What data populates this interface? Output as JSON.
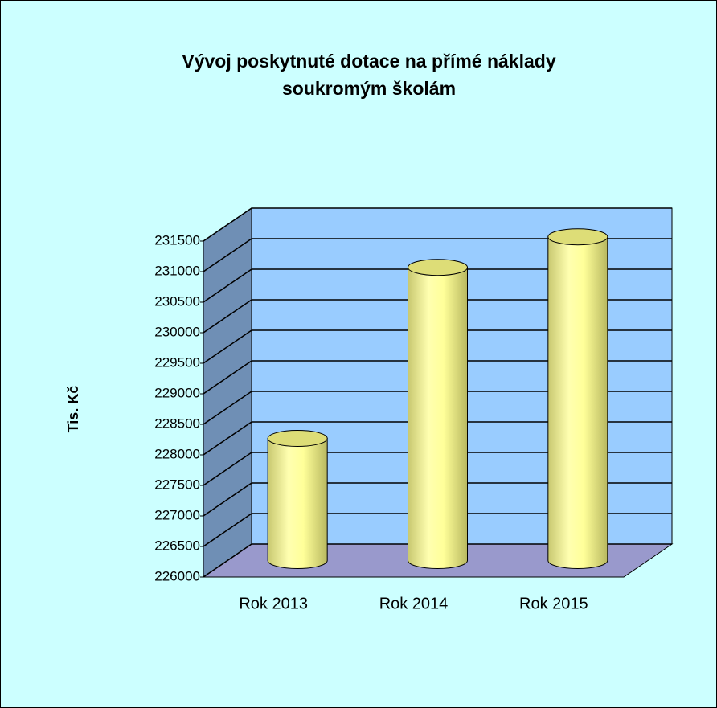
{
  "chart_data": {
    "type": "bar3d",
    "title": [
      "Vývoj poskytnuté dotace na přímé náklady",
      "soukromým školám"
    ],
    "y_label": "Tis. Kč",
    "categories": [
      "Rok 2013",
      "Rok 2014",
      "Rok 2015"
    ],
    "values": [
      228000,
      230800,
      231300
    ],
    "color": "#ffff99",
    "ylim": [
      226000,
      231500
    ],
    "yticks": [
      226000,
      226500,
      227000,
      227500,
      228000,
      228500,
      229000,
      229500,
      230000,
      230500,
      231000,
      231500
    ],
    "grid": true
  }
}
